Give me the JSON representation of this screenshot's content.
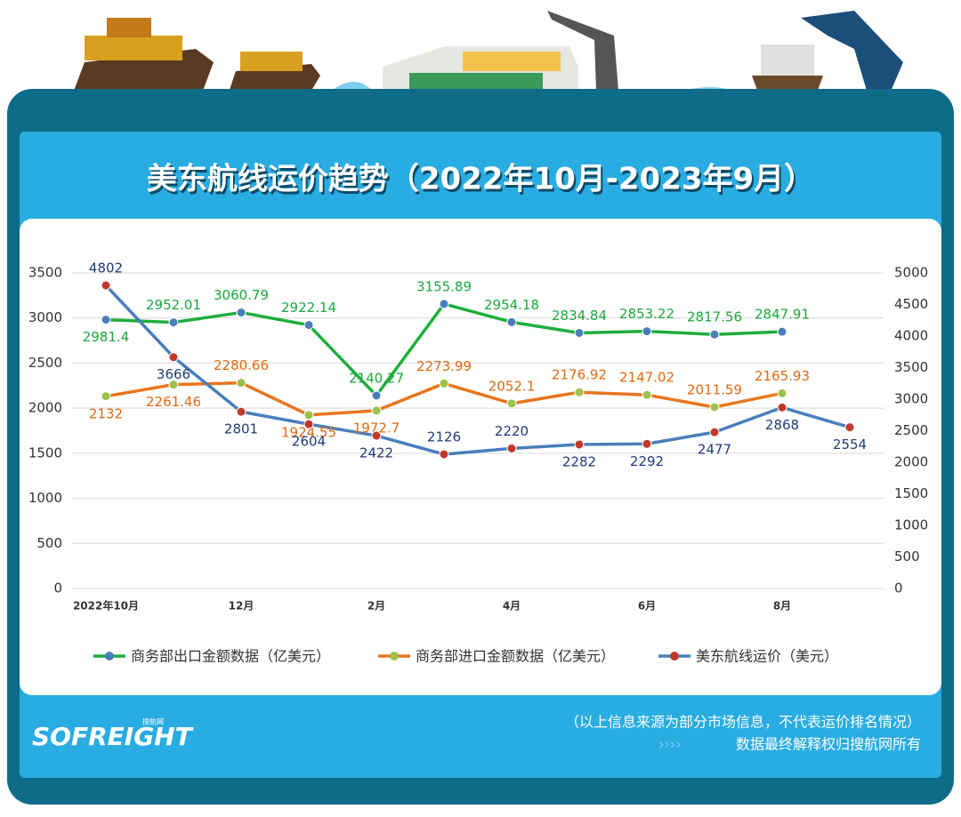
{
  "chart_data": {
    "type": "line",
    "title": "美东航线运价趋势（2022年10月-2023年9月）",
    "categories": [
      "2022年10月",
      null,
      "12月",
      null,
      "2月",
      null,
      "4月",
      null,
      "6月",
      null,
      "8月",
      null
    ],
    "series": [
      {
        "name": "商务部出口金额数据（亿美元）",
        "color": "#1fae3e",
        "marker_color": "#4a7ebb",
        "label_color": "#1aa83a",
        "values": [
          2981.4,
          2952.01,
          3060.79,
          2922.14,
          2140.27,
          3155.89,
          2954.18,
          2834.84,
          2853.22,
          2817.56,
          2847.91,
          null
        ]
      },
      {
        "name": "商务部进口金额数据（亿美元）",
        "color": "#e8761e",
        "marker_color": "#9bc24a",
        "label_color": "#e0680e",
        "values": [
          2132,
          2261.46,
          2280.66,
          1924.55,
          1972.7,
          2273.99,
          2052.1,
          2176.92,
          2147.02,
          2011.59,
          2165.93,
          null
        ]
      },
      {
        "name": "美东航线运价（美元）",
        "color": "#4a7ebb",
        "marker_color": "#c0392b",
        "label_color": "#1f3a78",
        "axis": "y2",
        "values": [
          4802,
          3666,
          2801,
          2604,
          2422,
          2126,
          2220,
          2282,
          2292,
          2477,
          2868,
          2554
        ]
      }
    ],
    "ylim": [
      0,
      3500
    ],
    "yticks": [
      0,
      500,
      1000,
      1500,
      2000,
      2500,
      3000,
      3500
    ],
    "y2lim": [
      0,
      5000
    ],
    "y2ticks": [
      0,
      500,
      1000,
      1500,
      2000,
      2500,
      3000,
      3500,
      4000,
      4500,
      5000
    ],
    "grid": true
  },
  "footer": {
    "note": "（以上信息来源为部分市场信息，不代表运价排名情况）",
    "rights": "数据最终解释权归搜航网所有",
    "logo": "SOFREIGHT",
    "logo_sub": "搜航网"
  }
}
